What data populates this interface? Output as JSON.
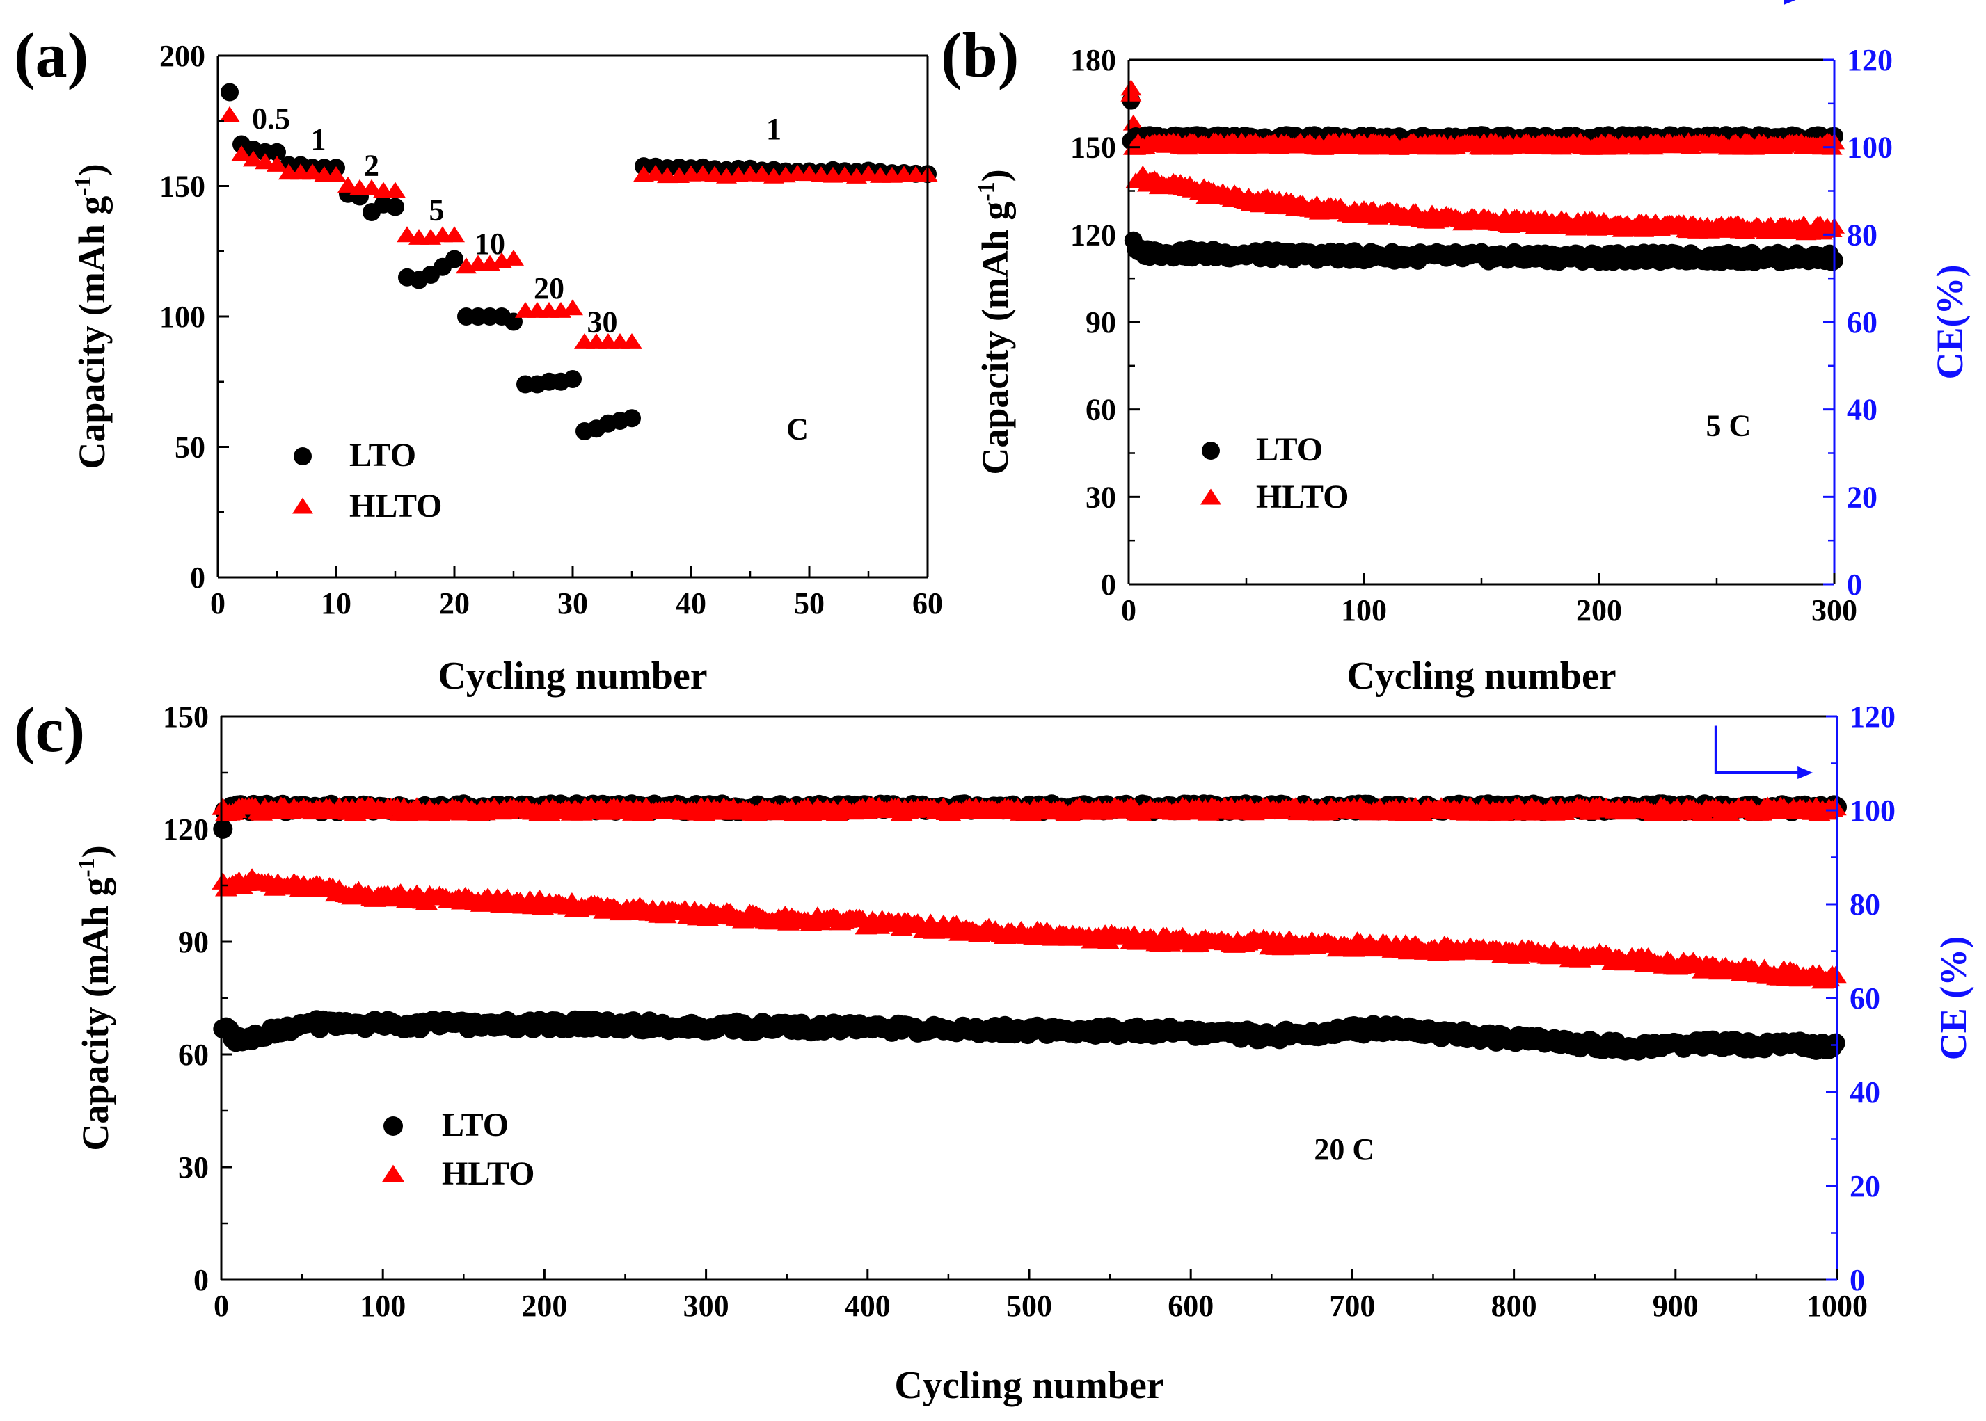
{
  "chart_data": [
    {
      "id": "a",
      "type": "scatter",
      "panel_label": "(a)",
      "xlabel": "Cycling number",
      "ylabel_main": "Capacity (mAh g",
      "ylabel_sup": "-1",
      "ylabel_end": ")",
      "xlim": [
        0,
        60
      ],
      "ylim": [
        0,
        200
      ],
      "xticks": [
        0,
        10,
        20,
        30,
        40,
        50,
        60
      ],
      "yticks": [
        0,
        50,
        100,
        150,
        200
      ],
      "legend": [
        "LTO",
        "HLTO"
      ],
      "legend_position": "bottom-left",
      "annotations": [
        {
          "text": "0.5",
          "x": 4.5,
          "y": 172
        },
        {
          "text": "1",
          "x": 8.5,
          "y": 164
        },
        {
          "text": "2",
          "x": 13,
          "y": 154
        },
        {
          "text": "5",
          "x": 18.5,
          "y": 137
        },
        {
          "text": "10",
          "x": 23,
          "y": 124
        },
        {
          "text": "20",
          "x": 28,
          "y": 107
        },
        {
          "text": "30",
          "x": 32.5,
          "y": 94
        },
        {
          "text": "1",
          "x": 47,
          "y": 168
        },
        {
          "text": "C",
          "x": 49,
          "y": 53
        }
      ],
      "series": [
        {
          "name": "LTO",
          "marker": "circle",
          "color": "#000000",
          "rate_segments": [
            {
              "rate": "0.5",
              "cycles": [
                1,
                5
              ],
              "values": [
                186,
                166,
                164,
                163,
                163
              ]
            },
            {
              "rate": "1",
              "cycles": [
                6,
                10
              ],
              "values": [
                158,
                158,
                157,
                157,
                157
              ]
            },
            {
              "rate": "2",
              "cycles": [
                11,
                15
              ],
              "values": [
                147,
                146,
                140,
                143,
                142
              ]
            },
            {
              "rate": "5",
              "cycles": [
                16,
                20
              ],
              "values": [
                115,
                114,
                116,
                119,
                122
              ]
            },
            {
              "rate": "10",
              "cycles": [
                21,
                25
              ],
              "values": [
                100,
                100,
                100,
                100,
                98
              ]
            },
            {
              "rate": "20",
              "cycles": [
                26,
                30
              ],
              "values": [
                74,
                74,
                75,
                75,
                76
              ]
            },
            {
              "rate": "30",
              "cycles": [
                31,
                35
              ],
              "values": [
                56,
                57,
                59,
                60,
                61
              ]
            },
            {
              "rate": "1",
              "cycles": [
                36,
                60
              ],
              "start": 157,
              "end": 155
            }
          ]
        },
        {
          "name": "HLTO",
          "marker": "triangle",
          "color": "#ff0000",
          "rate_segments": [
            {
              "rate": "0.5",
              "cycles": [
                1,
                5
              ],
              "values": [
                177,
                162,
                160,
                159,
                158
              ]
            },
            {
              "rate": "1",
              "cycles": [
                6,
                10
              ],
              "values": [
                155,
                155,
                155,
                154,
                154
              ]
            },
            {
              "rate": "2",
              "cycles": [
                11,
                15
              ],
              "values": [
                150,
                149,
                149,
                148,
                148
              ]
            },
            {
              "rate": "5",
              "cycles": [
                16,
                20
              ],
              "values": [
                131,
                130,
                130,
                131,
                131
              ]
            },
            {
              "rate": "10",
              "cycles": [
                21,
                25
              ],
              "values": [
                119,
                120,
                120,
                121,
                122
              ]
            },
            {
              "rate": "20",
              "cycles": [
                26,
                30
              ],
              "values": [
                102,
                102,
                102,
                102,
                103
              ]
            },
            {
              "rate": "30",
              "cycles": [
                31,
                35
              ],
              "values": [
                90,
                90,
                90,
                90,
                90
              ]
            },
            {
              "rate": "1",
              "cycles": [
                36,
                60
              ],
              "start": 154,
              "end": 154
            }
          ]
        }
      ]
    },
    {
      "id": "b",
      "type": "scatter",
      "panel_label": "(b)",
      "xlabel": "Cycling number",
      "ylabel_main": "Capacity (mAh g",
      "ylabel_sup": "-1",
      "ylabel_end": ")",
      "ylabel_right": "CE(%)",
      "xlim": [
        0,
        300
      ],
      "ylim": [
        0,
        180
      ],
      "ylim_right": [
        0,
        120
      ],
      "xticks": [
        0,
        100,
        200,
        300
      ],
      "yticks": [
        0,
        30,
        60,
        90,
        120,
        150,
        180
      ],
      "yticks_right": [
        0,
        20,
        40,
        60,
        80,
        100,
        120
      ],
      "legend": [
        "LTO",
        "HLTO"
      ],
      "legend_position": "bottom-left",
      "annotations": [
        {
          "text": "5 C",
          "x": 255,
          "y": 51
        }
      ],
      "right_axis_arrow": {
        "from_x": 250,
        "from_y": 143,
        "to_x": 285,
        "to_y": 134
      },
      "series": [
        {
          "name": "LTO",
          "role": "capacity",
          "marker": "circle",
          "color": "#000000",
          "cycles": [
            1,
            300
          ],
          "first_points": [
            166,
            118,
            115
          ],
          "start": 114,
          "end": 112
        },
        {
          "name": "HLTO",
          "role": "capacity",
          "marker": "triangle",
          "color": "#ff0000",
          "cycles": [
            1,
            300
          ],
          "first_points": [
            170,
            158
          ],
          "start": 140,
          "end": 121
        },
        {
          "name": "LTO",
          "role": "CE",
          "axis": "right",
          "marker": "circle",
          "color": "#000000",
          "cycles": [
            1,
            300
          ],
          "start": 102,
          "end": 102
        },
        {
          "name": "HLTO",
          "role": "CE",
          "axis": "right",
          "marker": "triangle",
          "color": "#ff0000",
          "cycles": [
            1,
            300
          ],
          "first_points": [
            112
          ],
          "start": 100.5,
          "end": 100.5
        }
      ]
    },
    {
      "id": "c",
      "type": "scatter",
      "panel_label": "(c)",
      "xlabel": "Cycling number",
      "ylabel_main": "Capacity (mAh g",
      "ylabel_sup": "-1",
      "ylabel_end": ")",
      "ylabel_right": "CE (%)",
      "xlim": [
        0,
        1000
      ],
      "ylim": [
        0,
        150
      ],
      "ylim_right": [
        0,
        120
      ],
      "xticks": [
        0,
        100,
        200,
        300,
        400,
        500,
        600,
        700,
        800,
        900,
        1000
      ],
      "yticks": [
        0,
        30,
        60,
        90,
        120,
        150
      ],
      "yticks_right": [
        0,
        20,
        40,
        60,
        80,
        100,
        120
      ],
      "legend": [
        "LTO",
        "HLTO"
      ],
      "legend_position": "bottom-left",
      "annotations": [
        {
          "text": "20 C",
          "x": 695,
          "y": 32
        }
      ],
      "right_axis_arrow": {
        "from_x": 925,
        "from_y": 118,
        "to_x": 985,
        "to_y": 108
      },
      "series": [
        {
          "name": "LTO",
          "role": "capacity",
          "marker": "circle",
          "color": "#000000",
          "cycles": [
            1,
            1000
          ],
          "keypoints": [
            [
              1,
              67
            ],
            [
              10,
              64
            ],
            [
              50,
              68
            ],
            [
              200,
              68
            ],
            [
              400,
              67
            ],
            [
              600,
              66
            ],
            [
              650,
              65
            ],
            [
              720,
              67
            ],
            [
              800,
              64
            ],
            [
              870,
              62
            ],
            [
              920,
              63
            ],
            [
              1000,
              62
            ]
          ]
        },
        {
          "name": "HLTO",
          "role": "capacity",
          "marker": "triangle",
          "color": "#ff0000",
          "cycles": [
            1,
            1000
          ],
          "keypoints": [
            [
              1,
              105
            ],
            [
              20,
              106
            ],
            [
              100,
              102
            ],
            [
              200,
              100
            ],
            [
              300,
              97
            ],
            [
              400,
              95
            ],
            [
              500,
              92
            ],
            [
              600,
              90
            ],
            [
              700,
              89
            ],
            [
              800,
              87
            ],
            [
              850,
              86
            ],
            [
              900,
              84
            ],
            [
              1000,
              80
            ]
          ]
        },
        {
          "name": "LTO",
          "role": "CE",
          "axis": "right",
          "marker": "circle",
          "color": "#000000",
          "cycles": [
            1,
            1000
          ],
          "first_points": [
            96
          ],
          "start": 100.5,
          "end": 100.5
        },
        {
          "name": "HLTO",
          "role": "CE",
          "axis": "right",
          "marker": "triangle",
          "color": "#ff0000",
          "cycles": [
            1,
            1000
          ],
          "start": 100,
          "end": 100
        }
      ]
    }
  ],
  "colors": {
    "lto": "#000000",
    "hlto": "#ff0000",
    "ce_axis": "#1010ff"
  }
}
